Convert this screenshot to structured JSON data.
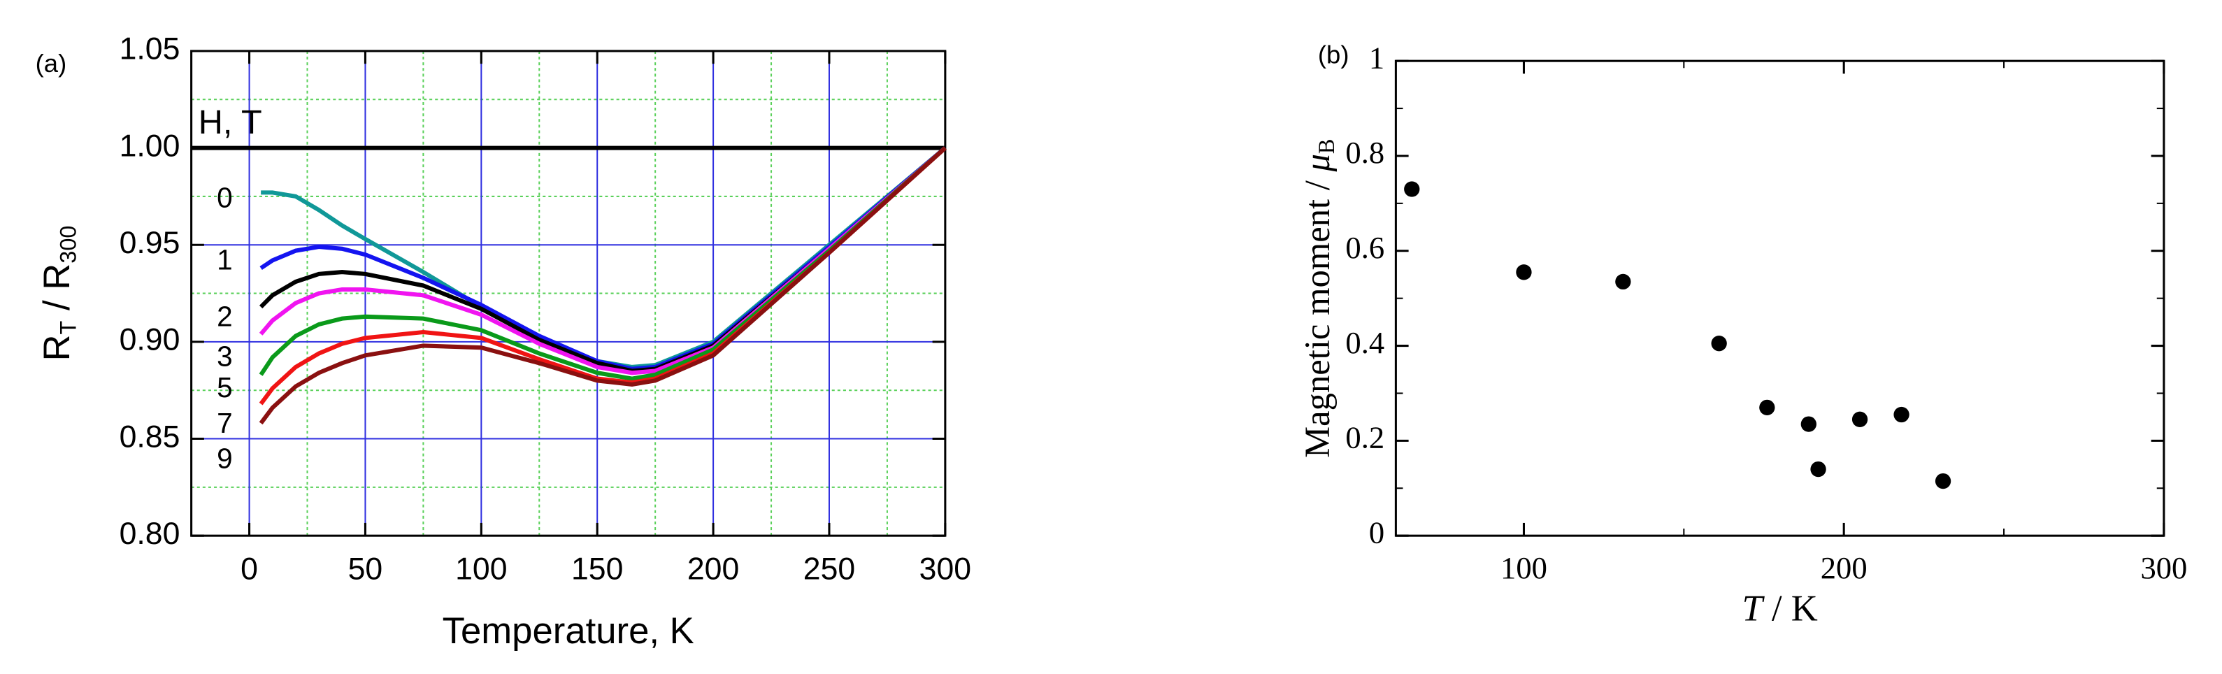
{
  "chart_data": [
    {
      "type": "line",
      "panel": "(a)",
      "annotation": "H, T",
      "xlabel": "Temperature, K",
      "ylabel": "R",
      "ylabel_sub": "T",
      "ylabel_mid": " / R",
      "ylabel_sub2": "300",
      "xlim": [
        -25,
        300
      ],
      "ylim": [
        0.8,
        1.05
      ],
      "xticks": [
        0,
        50,
        100,
        150,
        200,
        250,
        300
      ],
      "yticks": [
        {
          "value": 0.8,
          "label": "0.80"
        },
        0.85,
        {
          "value": 0.9,
          "label": "0.90"
        },
        0.95,
        {
          "value": 1.0,
          "label": "1.00"
        },
        1.05
      ],
      "xminorticks": [
        25,
        75,
        125,
        175,
        225,
        275
      ],
      "yminorticks": [
        0.825,
        0.875,
        0.925,
        0.975,
        1.025
      ],
      "grid": true,
      "hline": 1.0,
      "x": [
        5,
        10,
        20,
        30,
        40,
        50,
        75,
        100,
        125,
        150,
        165,
        175,
        200,
        250,
        300
      ],
      "series": [
        {
          "name": "0",
          "color": "#109898",
          "values": [
            0.977,
            0.977,
            0.975,
            0.968,
            0.96,
            0.953,
            0.936,
            0.918,
            0.902,
            0.89,
            0.887,
            0.888,
            0.9,
            0.95,
            1.0
          ]
        },
        {
          "name": "1",
          "color": "#1414f0",
          "values": [
            0.938,
            0.942,
            0.947,
            0.949,
            0.948,
            0.945,
            0.933,
            0.919,
            0.903,
            0.89,
            0.886,
            0.887,
            0.899,
            0.949,
            1.0
          ]
        },
        {
          "name": "2",
          "color": "#000000",
          "values": [
            0.918,
            0.924,
            0.931,
            0.935,
            0.936,
            0.935,
            0.929,
            0.917,
            0.901,
            0.889,
            0.885,
            0.886,
            0.898,
            0.948,
            1.0
          ]
        },
        {
          "name": "3",
          "color": "#f014f0",
          "values": [
            0.904,
            0.911,
            0.92,
            0.925,
            0.927,
            0.927,
            0.924,
            0.914,
            0.899,
            0.887,
            0.884,
            0.885,
            0.897,
            0.948,
            1.0
          ]
        },
        {
          "name": "5",
          "color": "#0a9a1a",
          "values": [
            0.883,
            0.892,
            0.903,
            0.909,
            0.912,
            0.913,
            0.912,
            0.906,
            0.894,
            0.884,
            0.881,
            0.883,
            0.896,
            0.947,
            1.0
          ]
        },
        {
          "name": "7",
          "color": "#f01414",
          "values": [
            0.868,
            0.876,
            0.887,
            0.894,
            0.899,
            0.902,
            0.905,
            0.902,
            0.891,
            0.881,
            0.879,
            0.881,
            0.894,
            0.946,
            1.0
          ]
        },
        {
          "name": "9",
          "color": "#8a1010",
          "values": [
            0.858,
            0.866,
            0.877,
            0.884,
            0.889,
            0.893,
            0.898,
            0.897,
            0.889,
            0.88,
            0.878,
            0.88,
            0.893,
            0.946,
            1.0
          ]
        }
      ]
    },
    {
      "type": "scatter",
      "panel": "(b)",
      "color": "#000000",
      "xlabel": "T",
      "xlabel_rest": " / K",
      "ylabel": "Magnetic moment / ",
      "ylabel_symbol": "μ",
      "ylabel_sub": "B",
      "xlim": [
        60,
        300
      ],
      "ylim": [
        0,
        1
      ],
      "xticks": [
        100,
        200,
        300
      ],
      "yticks": [
        0,
        0.2,
        0.4,
        0.6,
        0.8,
        1
      ],
      "xminorticks": [
        150,
        250
      ],
      "yminorticks": [
        0.1,
        0.3,
        0.5,
        0.7,
        0.9
      ],
      "x": [
        65,
        100,
        131,
        161,
        176,
        189,
        192,
        205,
        218,
        231
      ],
      "values": [
        0.73,
        0.555,
        0.535,
        0.405,
        0.27,
        0.235,
        0.14,
        0.245,
        0.255,
        0.115
      ]
    }
  ]
}
